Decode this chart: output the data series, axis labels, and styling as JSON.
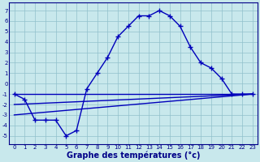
{
  "xlabel": "Graphe des températures (°c)",
  "bg_color": "#c8e8ec",
  "grid_color": "#90c0cc",
  "line_color": "#0000bb",
  "axis_label_color": "#000088",
  "x_ticks": [
    0,
    1,
    2,
    3,
    4,
    5,
    6,
    7,
    8,
    9,
    10,
    11,
    12,
    13,
    14,
    15,
    16,
    17,
    18,
    19,
    20,
    21,
    22,
    23
  ],
  "y_ticks": [
    -5,
    -4,
    -3,
    -2,
    -1,
    0,
    1,
    2,
    3,
    4,
    5,
    6,
    7
  ],
  "xlim": [
    -0.5,
    23.5
  ],
  "ylim": [
    -5.8,
    7.8
  ],
  "main_x": [
    0,
    1,
    2,
    3,
    4,
    5,
    6,
    7,
    8,
    9,
    10,
    11,
    12,
    13,
    14,
    15,
    16,
    17,
    18,
    19,
    20,
    21,
    22,
    23
  ],
  "main_y": [
    -1,
    -1.5,
    -3.5,
    -3.5,
    -3.5,
    -5,
    -4.5,
    -0.5,
    1.0,
    2.5,
    4.5,
    5.5,
    6.5,
    6.5,
    7.0,
    6.5,
    5.5,
    3.5,
    2.0,
    1.5,
    0.5,
    -1.0,
    -1.0,
    -1.0
  ],
  "ref_lines": [
    {
      "x0": 0,
      "y0": -1.0,
      "x1": 23,
      "y1": -1.0
    },
    {
      "x0": 0,
      "y0": -2.0,
      "x1": 23,
      "y1": -1.0
    },
    {
      "x0": 0,
      "y0": -3.0,
      "x1": 23,
      "y1": -1.0
    }
  ],
  "marker": "+",
  "markersize": 4,
  "linewidth": 1.0,
  "xlabel_fontsize": 7,
  "tick_fontsize": 5
}
